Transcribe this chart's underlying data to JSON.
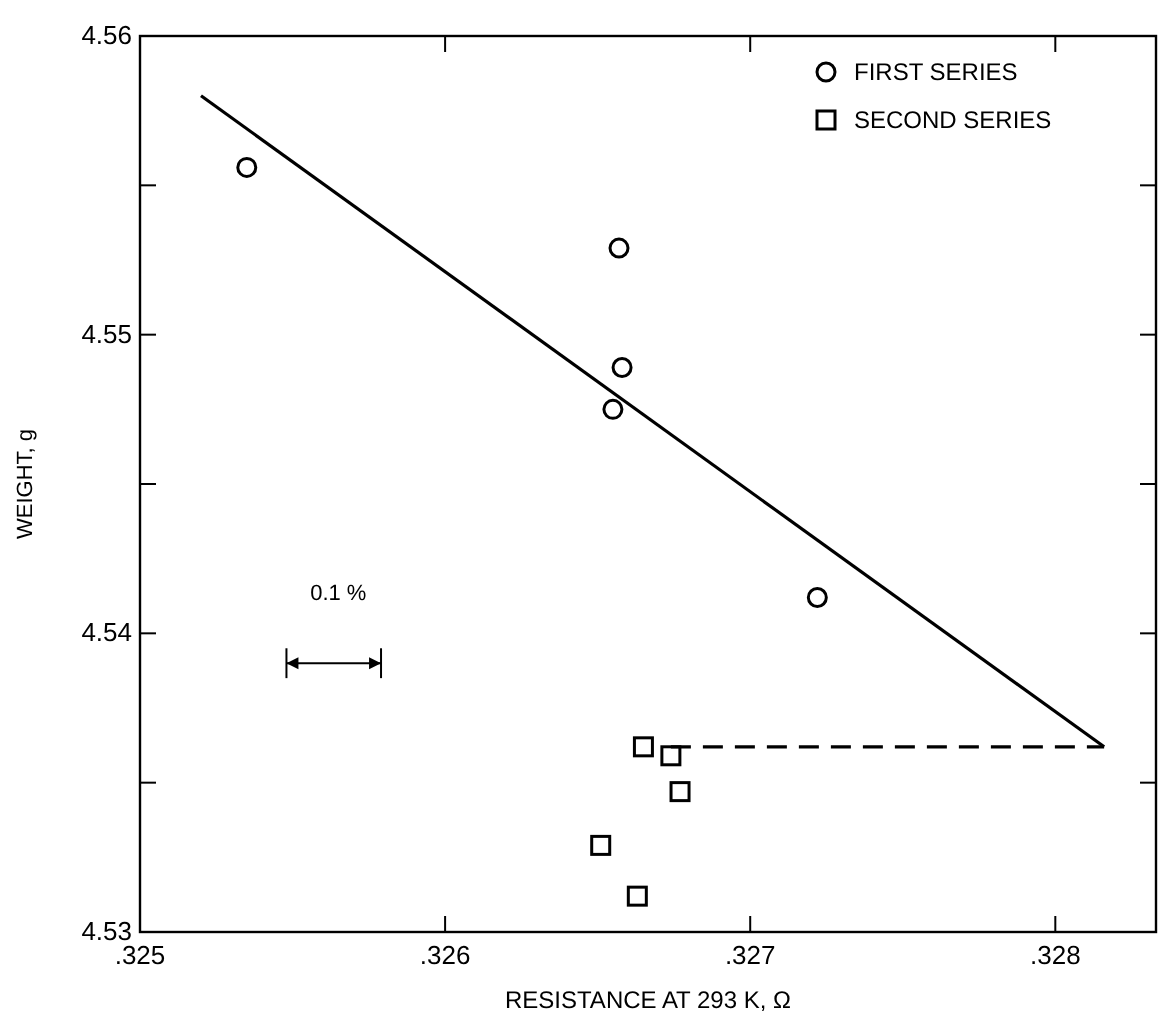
{
  "chart_data": {
    "type": "scatter",
    "xlabel": "RESISTANCE AT 293 K, Ω",
    "ylabel": "WEIGHT, g",
    "xlim": [
      0.325,
      0.32833
    ],
    "ylim": [
      4.53,
      4.56
    ],
    "xticks": [
      {
        "value": 0.325,
        "label": ".325"
      },
      {
        "value": 0.326,
        "label": ".326"
      },
      {
        "value": 0.327,
        "label": ".327"
      },
      {
        "value": 0.328,
        "label": ".328"
      }
    ],
    "yticks": [
      4.53,
      {
        "value": 4.535,
        "label": null
      },
      4.54,
      {
        "value": 4.545,
        "label": null
      },
      4.55,
      {
        "value": 4.555,
        "label": null
      },
      4.56
    ],
    "grid": false,
    "legend": "top right",
    "annotations": [
      "0.1 %"
    ],
    "series": [
      {
        "name": "FIRST SERIES",
        "marker": "circle",
        "color": "#000000",
        "x": [
          0.32535,
          0.32657,
          0.32655,
          0.32658,
          0.32722
        ],
        "values": [
          4.5556,
          4.5529,
          4.5475,
          4.5489,
          4.5412
        ]
      },
      {
        "name": "SECOND SERIES",
        "marker": "square",
        "color": "#000000",
        "x": [
          0.32665,
          0.32674,
          0.32677,
          0.32651,
          0.32663
        ],
        "values": [
          4.5362,
          4.5359,
          4.5347,
          4.5329,
          4.5312
        ]
      },
      {
        "type": "line",
        "marker": "none",
        "line_style": "solid",
        "color": "#000000",
        "x": [
          0.3252,
          0.32816
        ],
        "values": [
          4.558,
          4.5362
        ]
      },
      {
        "type": "line",
        "marker": "none",
        "line_style": "dashed",
        "color": "#000000",
        "x": [
          0.32674,
          0.32816
        ],
        "values": [
          4.5362,
          4.5362
        ]
      }
    ]
  }
}
